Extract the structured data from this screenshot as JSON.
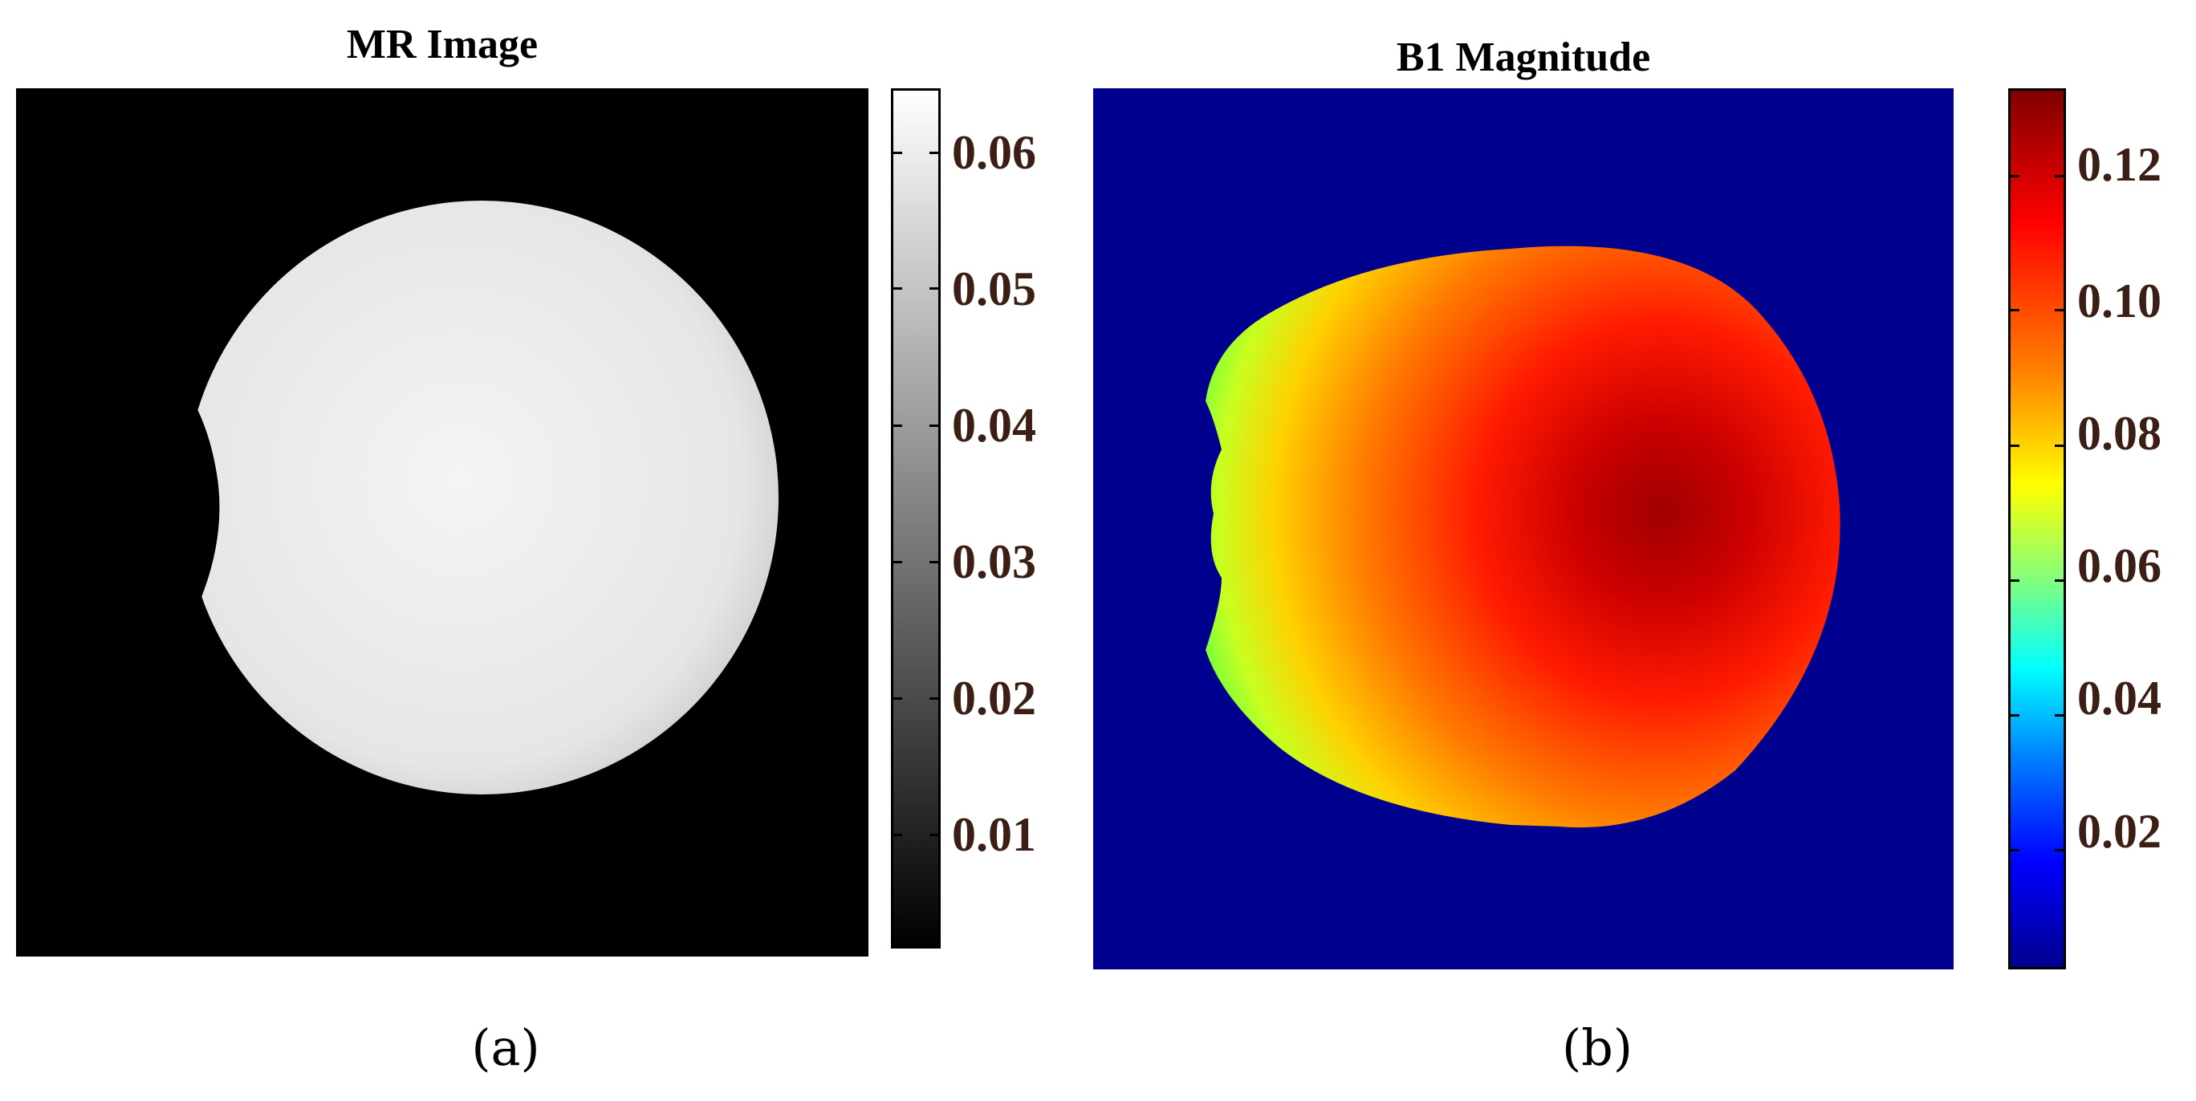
{
  "panel_a": {
    "title": "MR Image",
    "caption": "(a)",
    "colorbar_ticks": [
      "0.06",
      "0.05",
      "0.04",
      "0.03",
      "0.02",
      "0.01"
    ],
    "colorbar_colors": [
      "#ffffff",
      "#000000"
    ],
    "background_color": "#000000"
  },
  "panel_b": {
    "title": "B1 Magnitude",
    "caption": "(b)",
    "colorbar_ticks": [
      "0.12",
      "0.10",
      "0.08",
      "0.06",
      "0.04",
      "0.02"
    ],
    "colorbar_colors": [
      "#800000",
      "#ff0000",
      "#ffff00",
      "#00ffff",
      "#0000ff",
      "#00008f"
    ],
    "background_color": "#00008f"
  }
}
